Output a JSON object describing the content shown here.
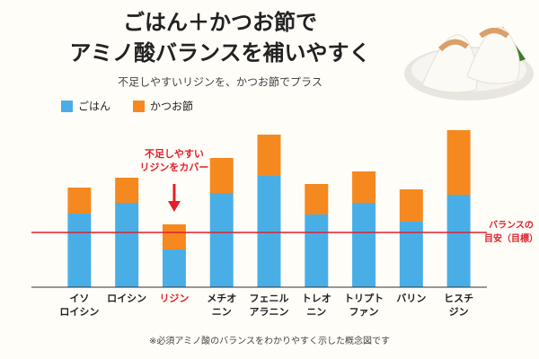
{
  "chart_data": {
    "type": "stacked_bar",
    "title": [
      "ごはん＋かつお節で",
      "アミノ酸バランスを補いやすく"
    ],
    "subtitle": "不足しやすいリジンを、かつお節でプラス",
    "categories": [
      [
        "イソ",
        "ロイシン"
      ],
      [
        "ロイシン"
      ],
      [
        "リジン"
      ],
      [
        "メチオ",
        "ニン"
      ],
      [
        "フェニル",
        "アラニン"
      ],
      [
        "トレオ",
        "ニン"
      ],
      [
        "トリプト",
        "ファン"
      ],
      [
        "バリン"
      ],
      [
        "ヒスチ",
        "ジン"
      ]
    ],
    "category_label_colors": [
      "#222",
      "#222",
      "#e0202a",
      "#222",
      "#222",
      "#222",
      "#222",
      "#222",
      "#222"
    ],
    "series": [
      {
        "name": "ごはん",
        "color": "#4aaee6",
        "values": [
          82,
          94,
          42,
          105,
          124,
          81,
          94,
          73,
          103
        ]
      },
      {
        "name": "かつお節",
        "color": "#f5891f",
        "values": [
          29,
          28,
          28,
          39,
          46,
          34,
          35,
          36,
          72
        ]
      }
    ],
    "ylim": [
      0,
      200
    ],
    "reference_line": {
      "value": 61,
      "color": "#e0202a",
      "label": [
        "バランスの",
        "目安（目標）"
      ]
    },
    "annotation": {
      "text": [
        "不足しやすい",
        "リジンをカバー"
      ],
      "color": "#e0202a"
    },
    "footnote": "※必須アミノ酸のバランスをわかりやすく示した概念図です"
  }
}
